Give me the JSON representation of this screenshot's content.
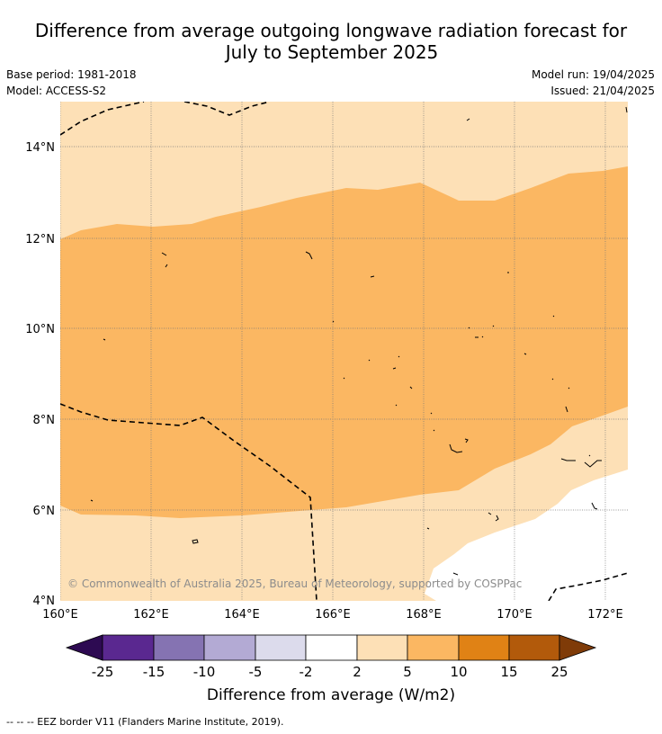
{
  "title": {
    "line1": "Difference from average outgoing longwave radiation forecast for",
    "line2": "July to September 2025"
  },
  "meta": {
    "base_period": "Base period: 1981-2018",
    "model": "Model: ACCESS-S2",
    "model_run": "Model run: 19/04/2025",
    "issued": "Issued: 21/04/2025"
  },
  "map": {
    "lat_ticks": [
      "4°N",
      "6°N",
      "8°N",
      "10°N",
      "12°N",
      "14°N"
    ],
    "lon_ticks": [
      "160°E",
      "162°E",
      "164°E",
      "166°E",
      "168°E",
      "170°E",
      "172°E"
    ],
    "copyright": "© Commonwealth of Australia 2025, Bureau of Meteorology, supported by COSPPac",
    "region_colors": {
      "band_2_5": "#fde0b6",
      "band_5_10": "#fbb762",
      "band_minus2_2": "#ffffff"
    }
  },
  "colorbar": {
    "ticks": [
      "-25",
      "-15",
      "-10",
      "-5",
      "-2",
      "2",
      "5",
      "10",
      "15",
      "25"
    ],
    "colors": [
      "#2d0a52",
      "#5a2890",
      "#8573b2",
      "#b3aad4",
      "#dcdbec",
      "#ffffff",
      "#fde0b6",
      "#fbb762",
      "#e08215",
      "#b25a0b",
      "#7f3b08"
    ],
    "label": "Difference from average (W/m2)"
  },
  "footer": {
    "legend": "--  --  -- EEZ border V11 (Flanders Marine Institute, 2019)."
  }
}
